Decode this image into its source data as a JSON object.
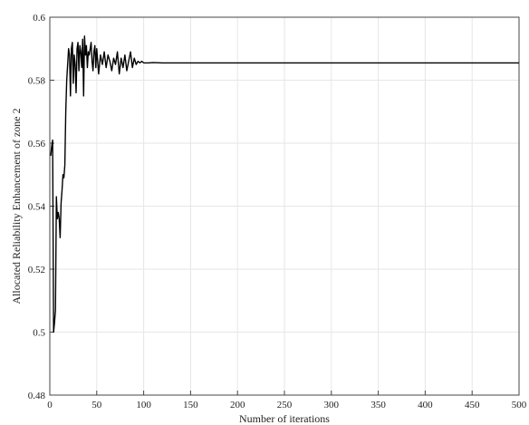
{
  "chart_data": {
    "type": "line",
    "title": "",
    "xlabel": "Number of iterations",
    "ylabel": "Allocated Reliability Enhancement of zone 2",
    "xlim": [
      0,
      500
    ],
    "ylim": [
      0.48,
      0.6
    ],
    "x_ticks": [
      0,
      50,
      100,
      150,
      200,
      250,
      300,
      350,
      400,
      450,
      500
    ],
    "y_ticks": [
      0.48,
      0.5,
      0.52,
      0.54,
      0.56,
      0.58,
      0.6
    ],
    "x_tick_labels": [
      "0",
      "50",
      "100",
      "150",
      "200",
      "250",
      "300",
      "350",
      "400",
      "450",
      "500"
    ],
    "y_tick_labels": [
      "0.48",
      "0.5",
      "0.52",
      "0.54",
      "0.56",
      "0.58",
      "0.6"
    ],
    "grid": true,
    "legend": "none",
    "colors": {
      "line": "#000000",
      "grid": "#e6e6e6",
      "axis": "#444444"
    },
    "series": [
      {
        "x": [
          1,
          2,
          3,
          4,
          5,
          6,
          7,
          8,
          9,
          10,
          11,
          12,
          13,
          14,
          15,
          16,
          17,
          18,
          19,
          20,
          21,
          22,
          23,
          24,
          25,
          26,
          27,
          28,
          29,
          30,
          31,
          32,
          33,
          34,
          35,
          36,
          37,
          38,
          39,
          40,
          41,
          42,
          43,
          44,
          45,
          46,
          47,
          48,
          49,
          50,
          52,
          54,
          56,
          58,
          60,
          62,
          64,
          66,
          68,
          70,
          72,
          74,
          76,
          78,
          80,
          82,
          84,
          86,
          88,
          90,
          92,
          94,
          96,
          98,
          100,
          105,
          110,
          120,
          130,
          140,
          150,
          500
        ],
        "y": [
          0.556,
          0.559,
          0.561,
          0.5,
          0.503,
          0.507,
          0.543,
          0.536,
          0.538,
          0.536,
          0.53,
          0.541,
          0.545,
          0.55,
          0.549,
          0.553,
          0.57,
          0.58,
          0.585,
          0.59,
          0.588,
          0.575,
          0.59,
          0.592,
          0.579,
          0.588,
          0.585,
          0.576,
          0.59,
          0.592,
          0.583,
          0.591,
          0.589,
          0.584,
          0.593,
          0.575,
          0.594,
          0.588,
          0.591,
          0.584,
          0.589,
          0.588,
          0.59,
          0.592,
          0.586,
          0.583,
          0.589,
          0.591,
          0.584,
          0.59,
          0.582,
          0.588,
          0.585,
          0.589,
          0.584,
          0.588,
          0.586,
          0.583,
          0.587,
          0.585,
          0.589,
          0.582,
          0.587,
          0.584,
          0.588,
          0.583,
          0.586,
          0.589,
          0.584,
          0.587,
          0.585,
          0.586,
          0.5855,
          0.586,
          0.5855,
          0.5855,
          0.5856,
          0.5855,
          0.5855,
          0.5855,
          0.5855,
          0.5855
        ]
      }
    ]
  }
}
